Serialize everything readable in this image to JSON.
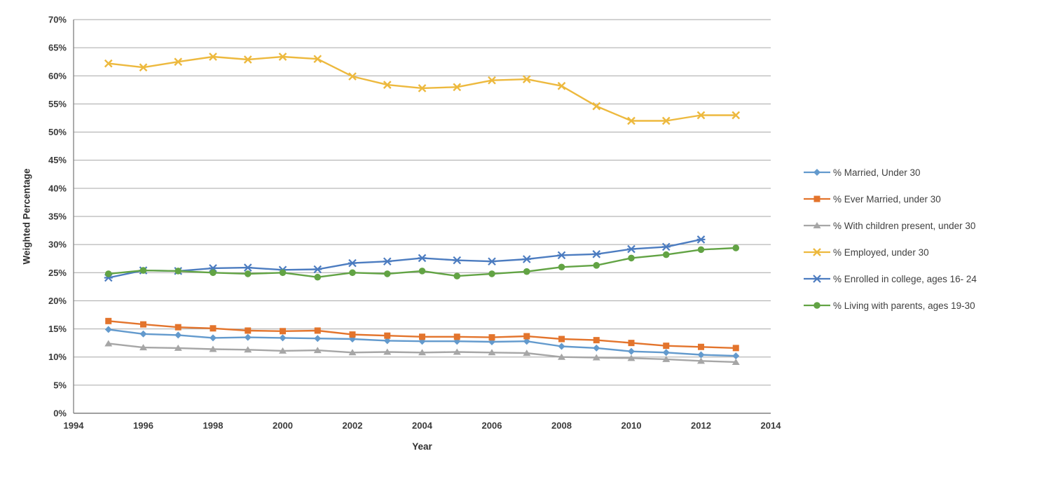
{
  "chart_data": {
    "type": "line",
    "title": "",
    "xlabel": "Year",
    "ylabel": "Weighted Percentage",
    "xlim": [
      1994,
      2014
    ],
    "ylim": [
      0,
      70
    ],
    "grid": true,
    "legend_position": "right",
    "x_tick_labels": [
      "1994",
      "1996",
      "1998",
      "2000",
      "2002",
      "2004",
      "2006",
      "2008",
      "2010",
      "2012",
      "2014"
    ],
    "y_tick_labels": [
      "0%",
      "5%",
      "10%",
      "15%",
      "20%",
      "25%",
      "30%",
      "35%",
      "40%",
      "45%",
      "50%",
      "55%",
      "60%",
      "65%",
      "70%"
    ],
    "years": [
      1995,
      1996,
      1997,
      1998,
      1999,
      2000,
      2001,
      2002,
      2003,
      2004,
      2005,
      2006,
      2007,
      2008,
      2009,
      2010,
      2011,
      2012,
      2013
    ],
    "series": [
      {
        "name": "% Married, Under 30",
        "marker": "diamond",
        "color": "#639ACD",
        "values": [
          14.9,
          14.1,
          13.9,
          13.4,
          13.5,
          13.4,
          13.3,
          13.2,
          12.9,
          12.8,
          12.8,
          12.7,
          12.8,
          11.9,
          11.6,
          11.0,
          10.8,
          10.4,
          10.2
        ]
      },
      {
        "name": "% Ever Married, under 30",
        "marker": "square",
        "color": "#E3742C",
        "values": [
          16.4,
          15.8,
          15.3,
          15.1,
          14.7,
          14.6,
          14.7,
          14.0,
          13.8,
          13.6,
          13.6,
          13.5,
          13.7,
          13.2,
          13.0,
          12.5,
          12.0,
          11.8,
          11.6
        ]
      },
      {
        "name": "% With children present, under 30",
        "marker": "triangle",
        "color": "#A6A6A6",
        "values": [
          12.4,
          11.7,
          11.6,
          11.4,
          11.3,
          11.1,
          11.2,
          10.8,
          10.9,
          10.8,
          10.9,
          10.8,
          10.7,
          10.0,
          9.9,
          9.8,
          9.6,
          9.3,
          9.1
        ]
      },
      {
        "name": "% Employed, under 30",
        "marker": "x",
        "color": "#EDB93E",
        "values": [
          62.2,
          61.5,
          62.5,
          63.4,
          62.9,
          63.4,
          63.0,
          59.9,
          58.4,
          57.8,
          58.0,
          59.2,
          59.4,
          58.2,
          54.6,
          52.0,
          52.0,
          53.0,
          53.0
        ]
      },
      {
        "name": "% Enrolled in college, ages 16- 24",
        "marker": "star",
        "color": "#4C7CC0",
        "values": [
          24.1,
          25.4,
          25.3,
          25.8,
          25.9,
          25.5,
          25.6,
          26.7,
          27.0,
          27.6,
          27.2,
          27.0,
          27.4,
          28.1,
          28.3,
          29.2,
          29.6,
          30.9,
          null
        ]
      },
      {
        "name": "% Living with parents, ages 19-30",
        "marker": "circle",
        "color": "#62A344",
        "values": [
          24.8,
          25.4,
          25.3,
          25.0,
          24.8,
          25.0,
          24.2,
          25.0,
          24.8,
          25.3,
          24.4,
          24.8,
          25.2,
          26.0,
          26.3,
          27.6,
          28.2,
          29.1,
          29.4
        ]
      }
    ],
    "style_colors": {
      "gridline": "#A6A6A6",
      "axis_line": "#808080",
      "tick_label": "#3b3b3b"
    }
  }
}
